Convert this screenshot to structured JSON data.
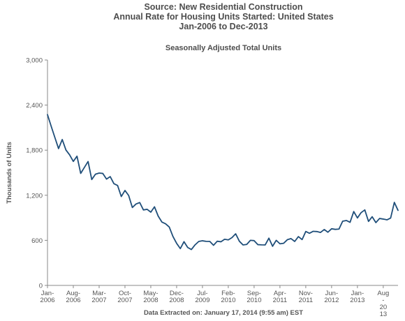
{
  "header": {
    "title_lines": [
      "Source: New Residential Construction",
      "Annual Rate for Housing Units Started: United States",
      "Jan-2006 to Dec-2013"
    ]
  },
  "footer": {
    "note": "Data Extracted on: January 17, 2014 (9:55 am) EST"
  },
  "chart_data": {
    "type": "line",
    "title": "Source: New Residential Construction / Annual Rate for Housing Units Started: United States / Jan-2006 to Dec-2013",
    "subtitle": "Seasonally Adjusted Total Units",
    "xlabel": "",
    "ylabel": "Thousands of Units",
    "ylim": [
      0,
      3000
    ],
    "yticks": [
      0,
      600,
      1200,
      1800,
      2400,
      3000
    ],
    "ytick_labels": [
      "0",
      "600",
      "1,200",
      "1,800",
      "2,400",
      "3,000"
    ],
    "grid": false,
    "line_color": "#1f4e79",
    "x_range": [
      "Jan-2006",
      "Dec-2013"
    ],
    "x_tick_labels": [
      {
        "month_index": 0,
        "lines": [
          "Jan-",
          "2006"
        ]
      },
      {
        "month_index": 7,
        "lines": [
          "Aug-",
          "2006"
        ]
      },
      {
        "month_index": 14,
        "lines": [
          "Mar-",
          "2007"
        ]
      },
      {
        "month_index": 21,
        "lines": [
          "Oct-",
          "2007"
        ]
      },
      {
        "month_index": 28,
        "lines": [
          "May-",
          "2008"
        ]
      },
      {
        "month_index": 35,
        "lines": [
          "Dec-",
          "2008"
        ]
      },
      {
        "month_index": 42,
        "lines": [
          "Jul-",
          "2009"
        ]
      },
      {
        "month_index": 49,
        "lines": [
          "Feb-",
          "2010"
        ]
      },
      {
        "month_index": 56,
        "lines": [
          "Sep-",
          "2010"
        ]
      },
      {
        "month_index": 63,
        "lines": [
          "Apr-",
          "2011"
        ]
      },
      {
        "month_index": 70,
        "lines": [
          "Nov-",
          "2011"
        ]
      },
      {
        "month_index": 77,
        "lines": [
          "Jun-",
          "2012"
        ]
      },
      {
        "month_index": 84,
        "lines": [
          "Jan-",
          "2013"
        ]
      },
      {
        "month_index": 91,
        "lines": [
          "Aug",
          "-",
          "20",
          "13"
        ]
      }
    ],
    "series": [
      {
        "values": [
          2273,
          2119,
          1969,
          1821,
          1942,
          1802,
          1737,
          1650,
          1720,
          1491,
          1570,
          1649,
          1409,
          1480,
          1495,
          1490,
          1415,
          1448,
          1354,
          1330,
          1183,
          1264,
          1197,
          1037,
          1084,
          1103,
          1005,
          1013,
          975,
          1046,
          923,
          844,
          820,
          777,
          652,
          560,
          490,
          582,
          505,
          478,
          540,
          585,
          594,
          586,
          585,
          534,
          588,
          581,
          614,
          606,
          636,
          687,
          588,
          539,
          546,
          600,
          596,
          543,
          540,
          539,
          629,
          521,
          600,
          554,
          561,
          608,
          623,
          585,
          650,
          610,
          718,
          694,
          720,
          717,
          705,
          744,
          708,
          754,
          746,
          750,
          854,
          864,
          840,
          983,
          898,
          969,
          1005,
          852,
          914,
          836,
          891,
          883,
          873,
          897,
          1105,
          999
        ]
      }
    ]
  }
}
